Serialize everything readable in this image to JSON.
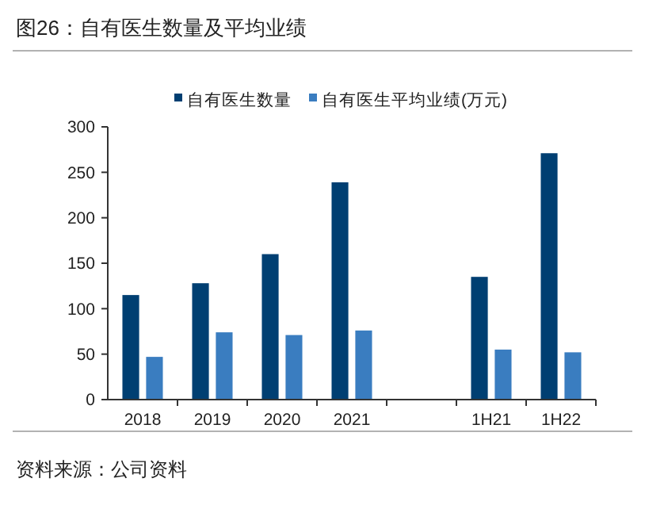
{
  "chart_data": {
    "type": "bar",
    "title": "图26：自有医生数量及平均业绩",
    "categories": [
      "2018",
      "2019",
      "2020",
      "2021",
      null,
      "1H21",
      "1H22"
    ],
    "series": [
      {
        "name": "自有医生数量",
        "color": "#003f72",
        "values": [
          115,
          128,
          160,
          239,
          null,
          135,
          271
        ]
      },
      {
        "name": "自有医生平均业绩(万元)",
        "color": "#3a7dc0",
        "values": [
          47,
          74,
          71,
          76,
          null,
          55,
          52
        ]
      }
    ],
    "ylim": [
      0,
      300
    ],
    "yticks": [
      0,
      50,
      100,
      150,
      200,
      250,
      300
    ],
    "grid": false,
    "legend": "top",
    "annotations": [
      "资料来源：公司资料"
    ]
  }
}
